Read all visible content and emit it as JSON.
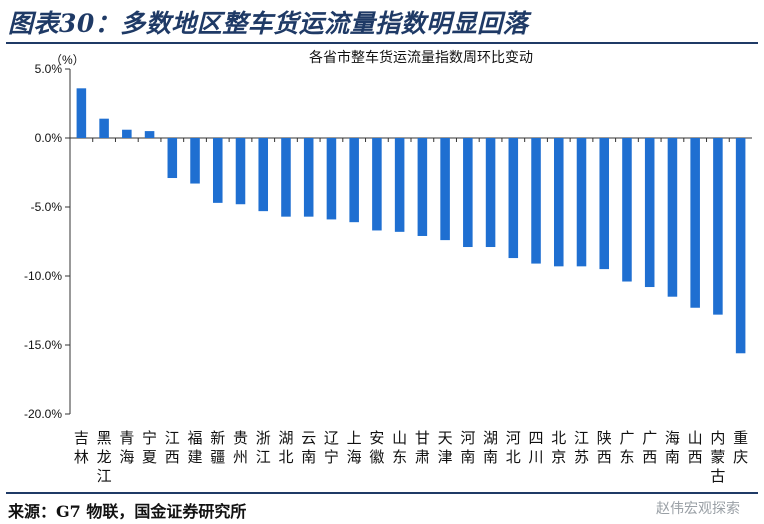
{
  "figure_title": "图表30：多数地区整车货运流量指数明显回落",
  "source": "来源：G7 物联，国金证券研究所",
  "watermark": "赵伟宏观探索",
  "colors": {
    "bar": "#1f6fd1",
    "rule": "#1f3a66"
  },
  "chart_data": {
    "type": "bar",
    "title": "各省市整车货运流量指数周环比变动",
    "unit": "（%）",
    "ylim": [
      -20,
      5
    ],
    "yticks": [
      "5.0%",
      "0.0%",
      "-5.0%",
      "-10.0%",
      "-15.0%",
      "-20.0%"
    ],
    "ytick_values": [
      5,
      0,
      -5,
      -10,
      -15,
      -20
    ],
    "categories": [
      "吉林",
      "黑龙江",
      "青海",
      "宁夏",
      "江西",
      "福建",
      "新疆",
      "贵州",
      "浙江",
      "湖北",
      "云南",
      "辽宁",
      "上海",
      "安徽",
      "山东",
      "甘肃",
      "天津",
      "河南",
      "湖南",
      "河北",
      "四川",
      "北京",
      "江苏",
      "陕西",
      "广东",
      "广西",
      "海南",
      "山西",
      "内蒙古",
      "重庆"
    ],
    "values": [
      3.6,
      1.4,
      0.6,
      0.5,
      -2.9,
      -3.3,
      -4.7,
      -4.8,
      -5.3,
      -5.7,
      -5.7,
      -5.9,
      -6.1,
      -6.7,
      -6.8,
      -7.1,
      -7.4,
      -7.9,
      -7.9,
      -8.7,
      -9.1,
      -9.3,
      -9.3,
      -9.5,
      -10.4,
      -10.8,
      -11.5,
      -12.3,
      -12.8,
      -15.6
    ],
    "grid": false,
    "legend": "none"
  }
}
